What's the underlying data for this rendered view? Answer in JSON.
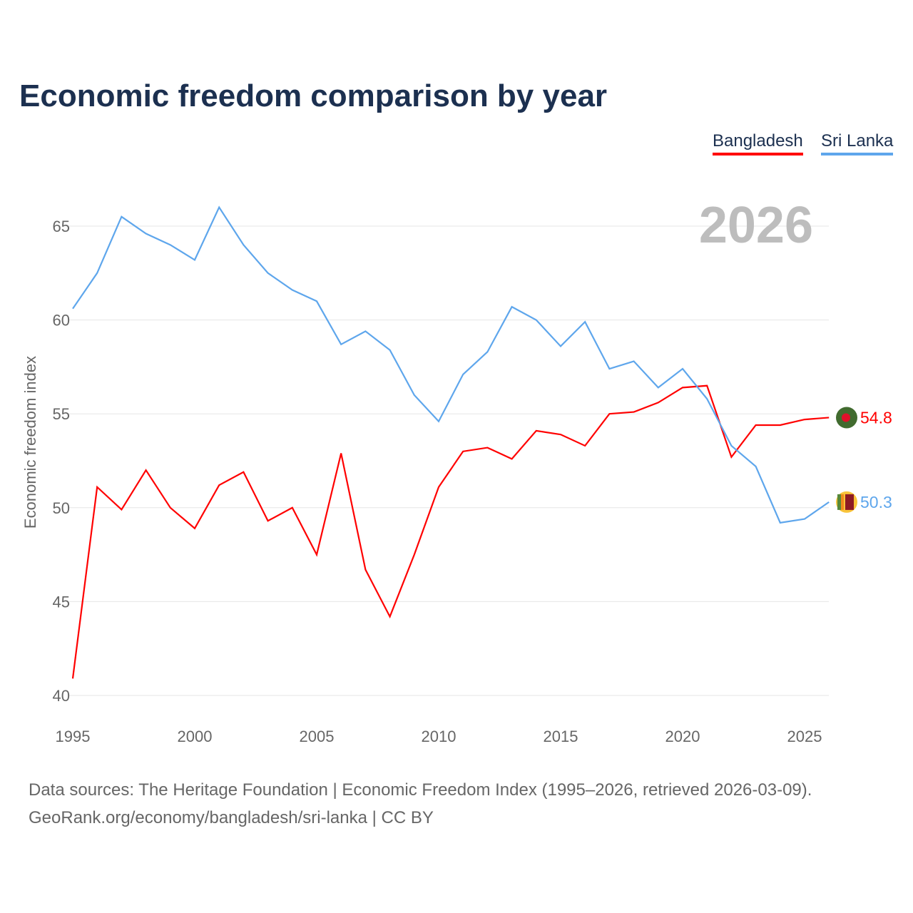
{
  "chart_data": {
    "type": "line",
    "title": "Economic freedom comparison by year",
    "ylabel": "Economic freedom index",
    "xlabel": "",
    "year_label": "2026",
    "x": [
      1995,
      1996,
      1997,
      1998,
      1999,
      2000,
      2001,
      2002,
      2003,
      2004,
      2005,
      2006,
      2007,
      2008,
      2009,
      2010,
      2011,
      2012,
      2013,
      2014,
      2015,
      2016,
      2017,
      2018,
      2019,
      2020,
      2021,
      2022,
      2023,
      2024,
      2025,
      2026
    ],
    "xticks": [
      1995,
      2000,
      2005,
      2010,
      2015,
      2020,
      2025
    ],
    "yticks": [
      40,
      45,
      50,
      55,
      60,
      65
    ],
    "ylim": [
      40,
      67
    ],
    "xlim": [
      1995,
      2026
    ],
    "grid": true,
    "legend_position": "top-right",
    "series": [
      {
        "name": "Bangladesh",
        "color": "#ff0000",
        "end_label": "54.8",
        "values": [
          40.9,
          51.1,
          49.9,
          52.0,
          50.0,
          48.9,
          51.2,
          51.9,
          49.3,
          50.0,
          47.5,
          52.9,
          46.7,
          44.2,
          47.5,
          51.1,
          53.0,
          53.2,
          52.6,
          54.1,
          53.9,
          53.3,
          55.0,
          55.1,
          55.6,
          56.4,
          56.5,
          52.7,
          54.4,
          54.4,
          54.7,
          54.8
        ]
      },
      {
        "name": "Sri Lanka",
        "color": "#5ea6ec",
        "end_label": "50.3",
        "values": [
          60.6,
          62.5,
          65.5,
          64.6,
          64.0,
          63.2,
          66.0,
          64.0,
          62.5,
          61.6,
          61.0,
          58.7,
          59.4,
          58.4,
          56.0,
          54.6,
          57.1,
          58.3,
          60.7,
          60.0,
          58.6,
          59.9,
          57.4,
          57.8,
          56.4,
          57.4,
          55.8,
          53.3,
          52.2,
          49.2,
          49.4,
          50.3
        ]
      }
    ]
  },
  "source_line1": "Data sources: The Heritage Foundation | Economic Freedom Index (1995–2026, retrieved 2026-03-09).",
  "source_line2": "GeoRank.org/economy/bangladesh/sri-lanka | CC BY"
}
